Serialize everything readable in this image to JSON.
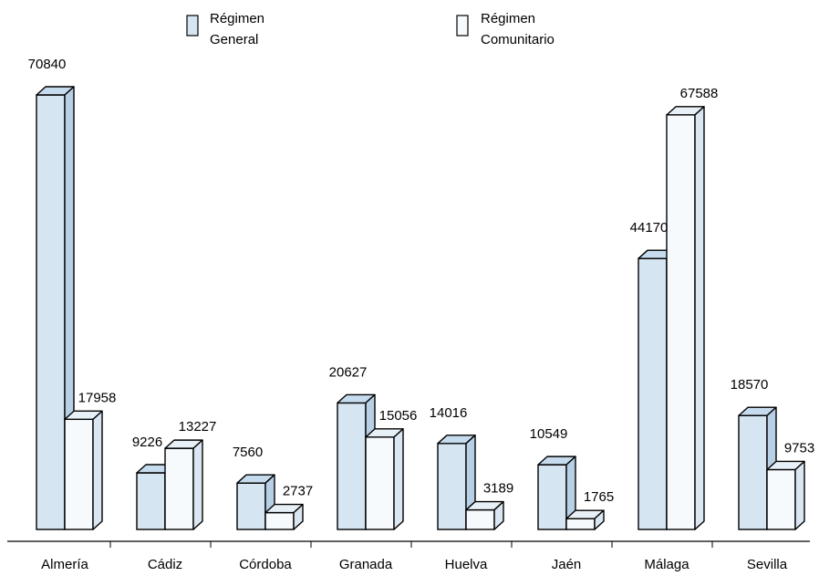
{
  "chart_data": {
    "type": "bar",
    "categories": [
      "Almería",
      "Cádiz",
      "Córdoba",
      "Granada",
      "Huelva",
      "Jaén",
      "Málaga",
      "Sevilla"
    ],
    "series": [
      {
        "name": "Régimen General",
        "values": [
          70840,
          9226,
          7560,
          20627,
          14016,
          10549,
          44170,
          18570
        ]
      },
      {
        "name": "Régimen Comunitario",
        "values": [
          17958,
          13227,
          2737,
          15056,
          3189,
          1765,
          67588,
          9753
        ]
      }
    ],
    "title": "",
    "xlabel": "",
    "ylabel": "",
    "ylim": [
      0,
      70840
    ],
    "grid": false,
    "legend_position": "top",
    "legend": [
      {
        "lines": [
          "Régimen",
          "General"
        ]
      },
      {
        "lines": [
          "Régimen",
          "Comunitario"
        ]
      }
    ],
    "colors": {
      "general_front": "#d5e5f2",
      "general_top": "#c6dbed",
      "general_side": "#b7d0e6",
      "comunitario_front": "#f6fafd",
      "comunitario_top": "#e8f0f7",
      "comunitario_side": "#dae6f1",
      "stroke": "#000000"
    }
  }
}
